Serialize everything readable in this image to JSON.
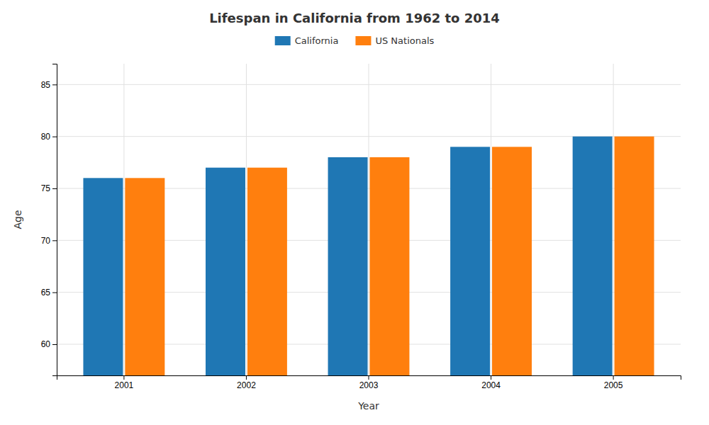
{
  "chart_data": {
    "type": "bar",
    "title": "Lifespan in California from 1962 to 2014",
    "xlabel": "Year",
    "ylabel": "Age",
    "categories": [
      "2001",
      "2002",
      "2003",
      "2004",
      "2005"
    ],
    "series": [
      {
        "name": "California",
        "values": [
          76,
          77,
          78,
          79,
          80
        ]
      },
      {
        "name": "US Nationals",
        "values": [
          76,
          77,
          78,
          79,
          80
        ]
      }
    ],
    "ylim": [
      57,
      87
    ],
    "yticks": [
      60,
      65,
      70,
      75,
      80,
      85
    ],
    "grid": true,
    "legend": "top"
  }
}
